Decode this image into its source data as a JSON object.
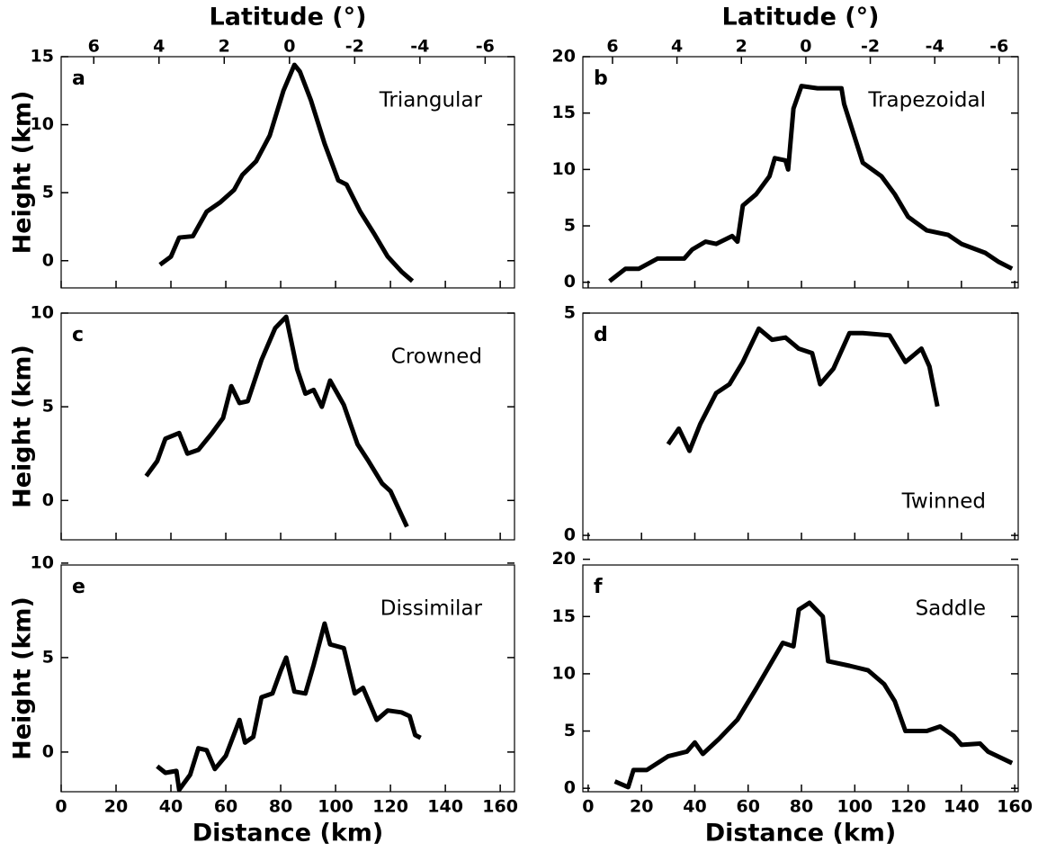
{
  "chart_data": [
    {
      "type": "line",
      "label": "a",
      "annotation": "Triangular",
      "ylabel": "Height (km)",
      "x2label": "Latitude (°)",
      "xlim": [
        0,
        165.2
      ],
      "ylim": [
        -2,
        15
      ],
      "yticks": [
        0,
        5,
        10,
        15
      ],
      "x2lim": [
        7.0,
        -6.9
      ],
      "x2ticks": [
        6,
        4,
        2,
        0,
        -2,
        -4,
        -6
      ],
      "series": [
        {
          "color": "#000000",
          "x": [
            36,
            40,
            43,
            48,
            53,
            58,
            63,
            66,
            71,
            76,
            81,
            85,
            87,
            91,
            96,
            101,
            104,
            109,
            114,
            119,
            124,
            128
          ],
          "values": [
            -0.3,
            0.3,
            1.7,
            1.8,
            3.6,
            4.3,
            5.2,
            6.3,
            7.3,
            9.2,
            12.5,
            14.4,
            13.9,
            11.8,
            8.6,
            5.9,
            5.6,
            3.6,
            2.0,
            0.3,
            -0.8,
            -1.5
          ]
        }
      ]
    },
    {
      "type": "line",
      "label": "b",
      "annotation": "Trapezoidal",
      "x2label": "Latitude (°)",
      "xlim": [
        -2,
        161.3
      ],
      "ylim": [
        -0.5,
        20
      ],
      "yticks": [
        0,
        5,
        10,
        15,
        20
      ],
      "x2lim": [
        6.92,
        -6.59
      ],
      "x2ticks": [
        6,
        4,
        2,
        0,
        -2,
        -4,
        -6
      ],
      "series": [
        {
          "color": "#000000",
          "x": [
            8,
            14,
            19,
            26,
            36,
            39,
            44,
            48,
            54,
            56,
            58,
            63,
            68,
            70,
            74,
            75,
            77,
            80,
            86,
            95,
            96,
            103,
            110,
            115,
            120,
            127,
            135,
            140,
            149,
            154,
            159
          ],
          "values": [
            0.1,
            1.2,
            1.2,
            2.1,
            2.1,
            2.9,
            3.6,
            3.4,
            4.1,
            3.6,
            6.8,
            7.8,
            9.4,
            11,
            10.8,
            10,
            15.4,
            17.4,
            17.2,
            17.2,
            15.8,
            10.6,
            9.4,
            7.8,
            5.8,
            4.6,
            4.2,
            3.4,
            2.6,
            1.8,
            1.2
          ]
        }
      ]
    },
    {
      "type": "line",
      "label": "c",
      "annotation": "Crowned",
      "ylabel": "Height (km)",
      "xlim": [
        0,
        165.2
      ],
      "ylim": [
        -2.1,
        10
      ],
      "yticks": [
        0,
        5,
        10
      ],
      "series": [
        {
          "color": "#000000",
          "x": [
            31,
            35,
            38,
            43,
            46,
            50,
            55,
            59,
            62,
            65,
            68,
            73,
            78,
            82,
            86,
            89,
            92,
            95,
            98,
            103,
            108,
            112,
            117,
            120,
            126
          ],
          "values": [
            1.3,
            2.1,
            3.3,
            3.6,
            2.5,
            2.7,
            3.6,
            4.4,
            6.1,
            5.2,
            5.3,
            7.5,
            9.2,
            9.8,
            7,
            5.7,
            5.9,
            5,
            6.4,
            5.1,
            3,
            2.1,
            0.9,
            0.5,
            -1.4
          ]
        }
      ]
    },
    {
      "type": "line",
      "label": "d",
      "annotation": "Twinned",
      "xlim": [
        -2,
        161.3
      ],
      "ylim": [
        -0.1,
        5
      ],
      "yticks": [
        0,
        5
      ],
      "series": [
        {
          "color": "#000000",
          "x": [
            30,
            34,
            38,
            42,
            48,
            53,
            58,
            64,
            69,
            74,
            79,
            84,
            87,
            92,
            98,
            103,
            113,
            119,
            125,
            128,
            131
          ],
          "values": [
            2.05,
            2.4,
            1.9,
            2.5,
            3.2,
            3.4,
            3.9,
            4.65,
            4.4,
            4.45,
            4.2,
            4.1,
            3.4,
            3.75,
            4.55,
            4.55,
            4.5,
            3.9,
            4.2,
            3.8,
            2.9
          ]
        }
      ]
    },
    {
      "type": "line",
      "label": "e",
      "annotation": "Dissimilar",
      "ylabel": "Height (km)",
      "xlabel": "Distance (km)",
      "xlim": [
        0,
        165.2
      ],
      "xticks": [
        0,
        20,
        40,
        60,
        80,
        100,
        120,
        140,
        160
      ],
      "ylim": [
        -2.1,
        9.9
      ],
      "yticks": [
        0,
        5,
        10
      ],
      "series": [
        {
          "color": "#000000",
          "x": [
            35,
            38,
            42,
            43,
            47,
            50,
            53,
            56,
            60,
            65,
            67,
            70,
            73,
            77,
            80,
            82,
            85,
            89,
            92,
            96,
            98,
            103,
            107,
            110,
            115,
            119,
            124,
            127,
            129,
            131
          ],
          "values": [
            -0.75,
            -1.1,
            -1,
            -2,
            -1.2,
            0.2,
            0.1,
            -0.9,
            -0.2,
            1.7,
            0.5,
            0.8,
            2.9,
            3.1,
            4.3,
            5.0,
            3.2,
            3.1,
            4.6,
            6.8,
            5.7,
            5.5,
            3.1,
            3.4,
            1.7,
            2.2,
            2.1,
            1.9,
            0.9,
            0.75
          ]
        }
      ]
    },
    {
      "type": "line",
      "label": "f",
      "annotation": "Saddle",
      "xlabel": "Distance (km)",
      "xlim": [
        -2,
        161.3
      ],
      "xticks": [
        0,
        20,
        40,
        60,
        80,
        100,
        120,
        140,
        160
      ],
      "ylim": [
        -0.3,
        19.5
      ],
      "yticks": [
        0,
        5,
        10,
        15,
        20
      ],
      "series": [
        {
          "color": "#000000",
          "x": [
            10,
            15,
            17,
            22,
            30,
            37,
            40,
            43,
            49,
            56,
            63,
            69,
            73,
            77,
            79,
            83,
            88,
            90,
            98,
            105,
            111,
            115,
            119,
            127,
            132,
            137,
            140,
            147,
            150,
            159
          ],
          "values": [
            0.6,
            0.1,
            1.6,
            1.6,
            2.8,
            3.2,
            4.0,
            3.0,
            4.3,
            6.0,
            8.7,
            11.1,
            12.7,
            12.4,
            15.6,
            16.2,
            15,
            11.1,
            10.7,
            10.3,
            9.1,
            7.6,
            5.0,
            5.0,
            5.4,
            4.6,
            3.8,
            3.9,
            3.2,
            2.2
          ]
        }
      ]
    }
  ]
}
